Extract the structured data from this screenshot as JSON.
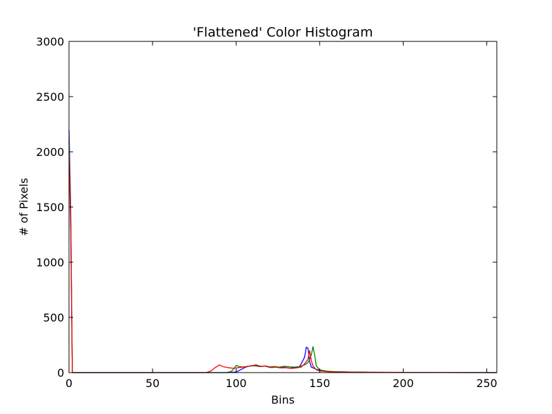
{
  "chart_data": {
    "type": "line",
    "title": "'Flattened' Color Histogram",
    "xlabel": "Bins",
    "ylabel": "# of Pixels",
    "xlim": [
      0,
      256
    ],
    "ylim": [
      0,
      3000
    ],
    "xticks": [
      0,
      50,
      100,
      150,
      200,
      250
    ],
    "yticks": [
      0,
      500,
      1000,
      1500,
      2000,
      2500,
      3000
    ],
    "grid": false,
    "legend": "none",
    "series": [
      {
        "color": "#0000ff",
        "points": [
          [
            0,
            2200
          ],
          [
            1,
            1500
          ],
          [
            2,
            0
          ],
          [
            50,
            0
          ],
          [
            95,
            0
          ],
          [
            100,
            5
          ],
          [
            102,
            20
          ],
          [
            105,
            45
          ],
          [
            108,
            60
          ],
          [
            111,
            65
          ],
          [
            114,
            55
          ],
          [
            117,
            60
          ],
          [
            120,
            48
          ],
          [
            123,
            52
          ],
          [
            126,
            44
          ],
          [
            129,
            48
          ],
          [
            132,
            40
          ],
          [
            135,
            45
          ],
          [
            138,
            55
          ],
          [
            140,
            110
          ],
          [
            141,
            140
          ],
          [
            142,
            230
          ],
          [
            143,
            220
          ],
          [
            144,
            100
          ],
          [
            145,
            50
          ],
          [
            148,
            30
          ],
          [
            150,
            20
          ],
          [
            155,
            10
          ],
          [
            160,
            8
          ],
          [
            170,
            5
          ],
          [
            180,
            3
          ],
          [
            200,
            2
          ],
          [
            220,
            1
          ],
          [
            256,
            0
          ]
        ]
      },
      {
        "color": "#008000",
        "points": [
          [
            0,
            2100
          ],
          [
            1,
            1400
          ],
          [
            2,
            0
          ],
          [
            50,
            0
          ],
          [
            94,
            0
          ],
          [
            97,
            10
          ],
          [
            99,
            40
          ],
          [
            100,
            65
          ],
          [
            102,
            55
          ],
          [
            105,
            50
          ],
          [
            108,
            58
          ],
          [
            111,
            62
          ],
          [
            114,
            55
          ],
          [
            117,
            60
          ],
          [
            120,
            52
          ],
          [
            123,
            55
          ],
          [
            126,
            50
          ],
          [
            129,
            58
          ],
          [
            132,
            52
          ],
          [
            135,
            50
          ],
          [
            138,
            55
          ],
          [
            141,
            70
          ],
          [
            143,
            90
          ],
          [
            144,
            120
          ],
          [
            145,
            160
          ],
          [
            146,
            235
          ],
          [
            147,
            160
          ],
          [
            148,
            60
          ],
          [
            150,
            25
          ],
          [
            155,
            12
          ],
          [
            160,
            8
          ],
          [
            170,
            5
          ],
          [
            180,
            3
          ],
          [
            200,
            2
          ],
          [
            220,
            1
          ],
          [
            256,
            0
          ]
        ]
      },
      {
        "color": "#ff0000",
        "points": [
          [
            0,
            2000
          ],
          [
            1,
            1300
          ],
          [
            2,
            0
          ],
          [
            50,
            0
          ],
          [
            82,
            0
          ],
          [
            85,
            15
          ],
          [
            87,
            40
          ],
          [
            89,
            60
          ],
          [
            90,
            70
          ],
          [
            92,
            55
          ],
          [
            95,
            45
          ],
          [
            98,
            40
          ],
          [
            100,
            42
          ],
          [
            103,
            48
          ],
          [
            106,
            55
          ],
          [
            109,
            62
          ],
          [
            112,
            70
          ],
          [
            115,
            55
          ],
          [
            118,
            60
          ],
          [
            121,
            45
          ],
          [
            124,
            50
          ],
          [
            127,
            42
          ],
          [
            130,
            45
          ],
          [
            133,
            38
          ],
          [
            136,
            42
          ],
          [
            139,
            50
          ],
          [
            141,
            80
          ],
          [
            143,
            120
          ],
          [
            144,
            200
          ],
          [
            145,
            110
          ],
          [
            146,
            60
          ],
          [
            148,
            25
          ],
          [
            150,
            15
          ],
          [
            155,
            8
          ],
          [
            160,
            5
          ],
          [
            170,
            3
          ],
          [
            190,
            2
          ],
          [
            210,
            1
          ],
          [
            256,
            0
          ]
        ]
      }
    ]
  }
}
